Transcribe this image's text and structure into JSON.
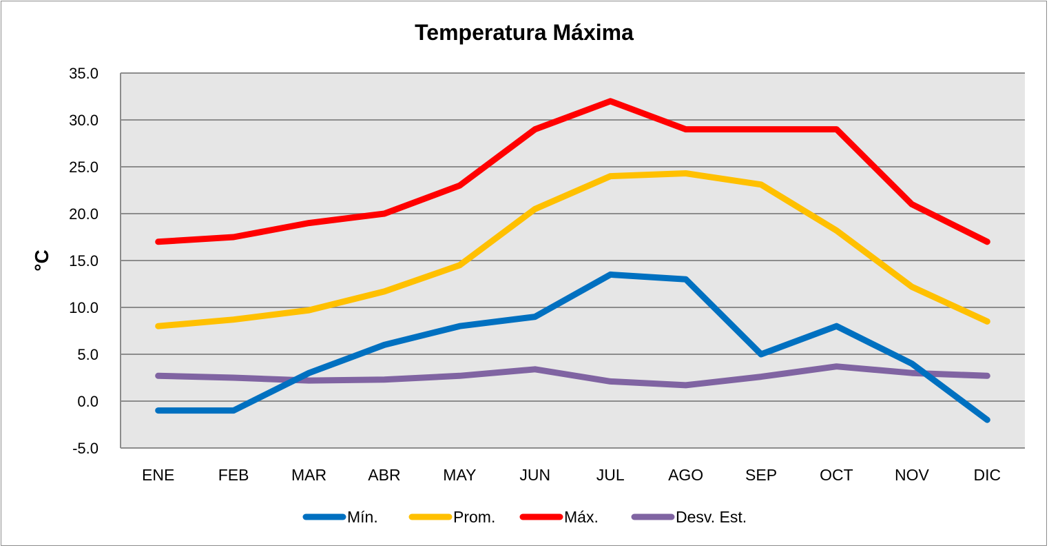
{
  "chart_data": {
    "type": "line",
    "title": "Temperatura Máxima",
    "xlabel": "",
    "ylabel": "°C",
    "categories": [
      "ENE",
      "FEB",
      "MAR",
      "ABR",
      "MAY",
      "JUN",
      "JUL",
      "AGO",
      "SEP",
      "OCT",
      "NOV",
      "DIC"
    ],
    "ylim": [
      -5.0,
      35.0
    ],
    "yticks": [
      "-5.0",
      "0.0",
      "5.0",
      "10.0",
      "15.0",
      "20.0",
      "25.0",
      "30.0",
      "35.0"
    ],
    "grid": true,
    "legend_position": "bottom",
    "colors": {
      "plot_background": "#e6e6e6",
      "gridline": "#8c8c8c",
      "negative_tick": "#ff0000"
    },
    "series": [
      {
        "name": "Mín.",
        "color": "#0070c0",
        "values": [
          -1.0,
          -1.0,
          3.0,
          6.0,
          8.0,
          9.0,
          13.5,
          13.0,
          5.0,
          8.0,
          4.0,
          -2.0
        ]
      },
      {
        "name": "Prom.",
        "color": "#ffc000",
        "values": [
          8.0,
          8.7,
          9.7,
          11.7,
          14.5,
          20.5,
          24.0,
          24.3,
          23.1,
          18.2,
          12.2,
          8.5
        ]
      },
      {
        "name": "Máx.",
        "color": "#ff0000",
        "values": [
          17.0,
          17.5,
          19.0,
          20.0,
          23.0,
          29.0,
          32.0,
          29.0,
          29.0,
          29.0,
          21.0,
          17.0
        ]
      },
      {
        "name": "Desv. Est.",
        "color": "#8064a2",
        "values": [
          2.7,
          2.5,
          2.2,
          2.3,
          2.7,
          3.4,
          2.1,
          1.7,
          2.6,
          3.7,
          3.0,
          2.7
        ]
      }
    ]
  }
}
